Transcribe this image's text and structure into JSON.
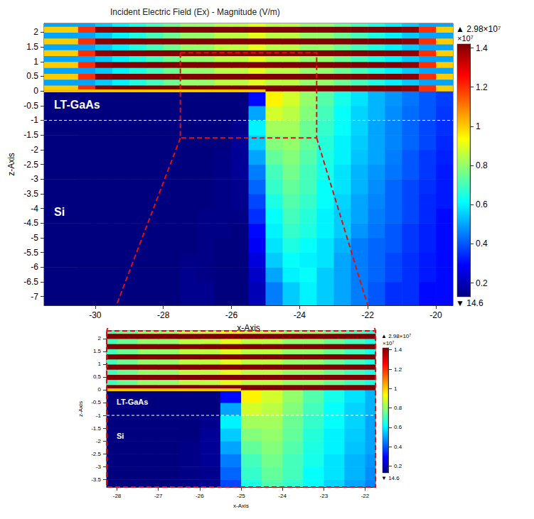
{
  "chart_data": {
    "type": "heatmap",
    "title": "Incident Electric Field (Ex) - Magnitude (V/m)",
    "xlabel": "x-Axis",
    "ylabel": "z-Axis",
    "xlim": [
      -31.5,
      -19.5
    ],
    "ylim": [
      -7.3,
      2.3
    ],
    "xticks": [
      -30,
      -28,
      -26,
      -24,
      -22,
      -20
    ],
    "yticks": [
      -7,
      -6.5,
      -6,
      -5.5,
      -5,
      -4.5,
      -4,
      -3.5,
      -3,
      -2.5,
      -2,
      -1.5,
      -1,
      -0.5,
      0,
      0.5,
      1,
      1.5,
      2
    ],
    "grid": false,
    "layer_labels": [
      "LT-GaAs",
      "Si"
    ],
    "interface_z": -1,
    "electrode": {
      "x": [
        -31.5,
        -25
      ],
      "z": 0,
      "color": "#f2c200"
    },
    "zoom_box": {
      "x": [
        -27.5,
        -23.5
      ],
      "z": [
        -1.6,
        1.3
      ]
    },
    "x_edges": [
      -31.5,
      -30.5,
      -30,
      -29.5,
      -29,
      -28.5,
      -28,
      -27.5,
      -27,
      -26.5,
      -26,
      -25.5,
      -25,
      -24.5,
      -24,
      -23.5,
      -23,
      -22.5,
      -22,
      -21.5,
      -21,
      -20.5,
      -20,
      -19.5
    ],
    "z_edges": [
      -7.3,
      -6.5,
      -6,
      -5.5,
      -5,
      -4.5,
      -4,
      -3.5,
      -3,
      -2.5,
      -2,
      -1.5,
      -1,
      -0.5,
      0,
      0.2,
      0.4,
      0.6,
      0.8,
      1,
      1.2,
      1.4,
      1.6,
      1.8,
      2,
      2.2,
      2.3
    ],
    "cells": [
      [
        0.05,
        0.05,
        0.05,
        0.06,
        0.08,
        0.1,
        0.12,
        0.15,
        0.15,
        0.12,
        0.1,
        0.2,
        0.45,
        0.55,
        0.6,
        0.55,
        0.5,
        0.45,
        0.4,
        0.35,
        0.35,
        0.3,
        0.3
      ],
      [
        0.05,
        0.05,
        0.05,
        0.06,
        0.08,
        0.1,
        0.13,
        0.15,
        0.14,
        0.12,
        0.1,
        0.22,
        0.5,
        0.6,
        0.62,
        0.55,
        0.5,
        0.45,
        0.42,
        0.38,
        0.35,
        0.32,
        0.3
      ],
      [
        0.04,
        0.05,
        0.05,
        0.06,
        0.08,
        0.1,
        0.12,
        0.14,
        0.14,
        0.12,
        0.12,
        0.25,
        0.55,
        0.62,
        0.6,
        0.58,
        0.5,
        0.45,
        0.42,
        0.38,
        0.35,
        0.32,
        0.3
      ],
      [
        0.04,
        0.04,
        0.05,
        0.06,
        0.08,
        0.1,
        0.12,
        0.13,
        0.14,
        0.13,
        0.12,
        0.28,
        0.58,
        0.65,
        0.62,
        0.58,
        0.52,
        0.45,
        0.42,
        0.4,
        0.36,
        0.33,
        0.3
      ],
      [
        0.04,
        0.04,
        0.05,
        0.06,
        0.07,
        0.09,
        0.11,
        0.13,
        0.14,
        0.14,
        0.13,
        0.3,
        0.6,
        0.68,
        0.65,
        0.6,
        0.55,
        0.48,
        0.44,
        0.4,
        0.36,
        0.33,
        0.3
      ],
      [
        0.04,
        0.04,
        0.04,
        0.05,
        0.07,
        0.09,
        0.11,
        0.12,
        0.14,
        0.14,
        0.14,
        0.35,
        0.62,
        0.7,
        0.66,
        0.6,
        0.55,
        0.5,
        0.45,
        0.42,
        0.38,
        0.34,
        0.3
      ],
      [
        0.03,
        0.04,
        0.04,
        0.05,
        0.06,
        0.08,
        0.1,
        0.12,
        0.13,
        0.14,
        0.15,
        0.38,
        0.65,
        0.72,
        0.68,
        0.62,
        0.56,
        0.5,
        0.46,
        0.42,
        0.38,
        0.34,
        0.32
      ],
      [
        0.03,
        0.03,
        0.04,
        0.05,
        0.06,
        0.08,
        0.1,
        0.11,
        0.13,
        0.14,
        0.15,
        0.42,
        0.68,
        0.74,
        0.7,
        0.62,
        0.58,
        0.52,
        0.47,
        0.42,
        0.38,
        0.35,
        0.32
      ],
      [
        0.03,
        0.03,
        0.04,
        0.04,
        0.05,
        0.07,
        0.09,
        0.11,
        0.12,
        0.14,
        0.16,
        0.45,
        0.7,
        0.76,
        0.7,
        0.64,
        0.58,
        0.52,
        0.48,
        0.44,
        0.4,
        0.36,
        0.32
      ],
      [
        0.03,
        0.03,
        0.03,
        0.04,
        0.05,
        0.07,
        0.08,
        0.1,
        0.12,
        0.14,
        0.16,
        0.5,
        0.74,
        0.78,
        0.72,
        0.65,
        0.6,
        0.54,
        0.5,
        0.45,
        0.4,
        0.36,
        0.33
      ],
      [
        0.02,
        0.03,
        0.03,
        0.04,
        0.05,
        0.06,
        0.08,
        0.1,
        0.11,
        0.13,
        0.16,
        0.55,
        0.78,
        0.8,
        0.74,
        0.66,
        0.6,
        0.55,
        0.5,
        0.46,
        0.42,
        0.38,
        0.34
      ],
      [
        0.02,
        0.02,
        0.03,
        0.03,
        0.04,
        0.05,
        0.07,
        0.08,
        0.1,
        0.12,
        0.15,
        0.6,
        0.82,
        0.82,
        0.75,
        0.68,
        0.62,
        0.56,
        0.5,
        0.46,
        0.42,
        0.38,
        0.35
      ],
      [
        0.02,
        0.02,
        0.02,
        0.03,
        0.03,
        0.04,
        0.05,
        0.06,
        0.08,
        0.1,
        0.12,
        0.5,
        0.88,
        0.85,
        0.78,
        0.7,
        0.62,
        0.56,
        0.52,
        0.47,
        0.43,
        0.4,
        0.36
      ],
      [
        0.01,
        0.01,
        0.02,
        0.02,
        0.02,
        0.03,
        0.03,
        0.04,
        0.05,
        0.06,
        0.08,
        0.3,
        0.95,
        0.88,
        0.8,
        0.72,
        0.64,
        0.58,
        0.52,
        0.48,
        0.44,
        0.4,
        0.37
      ],
      [
        1.0,
        1.2,
        1.4,
        1.6,
        1.8,
        1.9,
        2.0,
        2.0,
        2.1,
        2.1,
        2.2,
        2.2,
        2.2,
        2.1,
        2.1,
        2.0,
        2.0,
        1.9,
        1.8,
        1.6,
        1.4,
        1.2,
        1.0
      ],
      [
        0.5,
        0.5,
        0.55,
        0.6,
        0.65,
        0.7,
        0.75,
        0.8,
        0.8,
        0.85,
        0.85,
        0.9,
        0.85,
        0.85,
        0.8,
        0.8,
        0.75,
        0.7,
        0.65,
        0.6,
        0.55,
        0.5,
        0.5
      ],
      [
        1.0,
        1.2,
        1.4,
        1.6,
        1.8,
        1.9,
        2.0,
        2.0,
        2.1,
        2.1,
        2.2,
        2.2,
        2.2,
        2.1,
        2.1,
        2.0,
        2.0,
        1.9,
        1.8,
        1.6,
        1.4,
        1.2,
        1.0
      ],
      [
        0.5,
        0.5,
        0.55,
        0.6,
        0.65,
        0.7,
        0.75,
        0.8,
        0.8,
        0.85,
        0.85,
        0.9,
        0.85,
        0.85,
        0.8,
        0.8,
        0.75,
        0.7,
        0.65,
        0.6,
        0.55,
        0.5,
        0.5
      ],
      [
        1.0,
        1.2,
        1.4,
        1.6,
        1.8,
        1.9,
        2.0,
        2.0,
        2.1,
        2.1,
        2.2,
        2.2,
        2.2,
        2.1,
        2.1,
        2.0,
        2.0,
        1.9,
        1.8,
        1.6,
        1.4,
        1.2,
        1.0
      ],
      [
        0.5,
        0.5,
        0.55,
        0.6,
        0.65,
        0.7,
        0.75,
        0.8,
        0.8,
        0.85,
        0.85,
        0.9,
        0.85,
        0.85,
        0.8,
        0.8,
        0.75,
        0.7,
        0.65,
        0.6,
        0.55,
        0.5,
        0.5
      ],
      [
        1.0,
        1.2,
        1.4,
        1.6,
        1.8,
        1.9,
        2.0,
        2.0,
        2.1,
        2.1,
        2.2,
        2.2,
        2.2,
        2.1,
        2.1,
        2.0,
        2.0,
        1.9,
        1.8,
        1.6,
        1.4,
        1.2,
        1.0
      ],
      [
        0.5,
        0.5,
        0.55,
        0.6,
        0.65,
        0.7,
        0.75,
        0.8,
        0.8,
        0.85,
        0.85,
        0.9,
        0.85,
        0.85,
        0.8,
        0.8,
        0.75,
        0.7,
        0.65,
        0.6,
        0.55,
        0.5,
        0.5
      ],
      [
        1.0,
        1.2,
        1.4,
        1.6,
        1.8,
        1.9,
        2.0,
        2.0,
        2.1,
        2.1,
        2.2,
        2.2,
        2.2,
        2.1,
        2.1,
        2.0,
        2.0,
        1.9,
        1.8,
        1.6,
        1.4,
        1.2,
        1.0
      ],
      [
        0.5,
        0.5,
        0.55,
        0.6,
        0.65,
        0.7,
        0.75,
        0.8,
        0.8,
        0.85,
        0.85,
        0.9,
        0.85,
        0.85,
        0.8,
        0.8,
        0.75,
        0.7,
        0.65,
        0.6,
        0.55,
        0.5,
        0.5
      ],
      [
        1.0,
        1.2,
        1.4,
        1.6,
        1.8,
        1.9,
        2.0,
        2.0,
        2.1,
        2.1,
        2.2,
        2.2,
        2.2,
        2.1,
        2.1,
        2.0,
        2.0,
        1.9,
        1.8,
        1.6,
        1.4,
        1.2,
        1.0
      ],
      [
        0.5,
        0.5,
        0.55,
        0.6,
        0.65,
        0.7,
        0.75,
        0.8,
        0.8,
        0.85,
        0.85,
        0.9,
        0.85,
        0.85,
        0.8,
        0.8,
        0.75,
        0.7,
        0.65,
        0.6,
        0.55,
        0.5,
        0.5
      ]
    ],
    "colorbar": {
      "range": [
        0.13,
        1.42
      ],
      "ticks": [
        0.2,
        0.4,
        0.6,
        0.8,
        1,
        1.2,
        1.4
      ],
      "multiplier": "×10⁷",
      "max_label": "▲ 2.98×10⁷",
      "min_label": "▼ 14.6"
    },
    "inset": {
      "xlabel": "x-Axis",
      "ylabel": "z-Axis",
      "xlim": [
        -28.25,
        -21.75
      ],
      "ylim": [
        -3.8,
        2.3
      ],
      "xticks": [
        -28,
        -27,
        -26,
        -25,
        -24,
        -23,
        -22
      ],
      "yticks": [
        -3.5,
        -3,
        -2.5,
        -2,
        -1.5,
        -1,
        -0.5,
        0,
        0.5,
        1,
        1.5,
        2
      ]
    }
  }
}
